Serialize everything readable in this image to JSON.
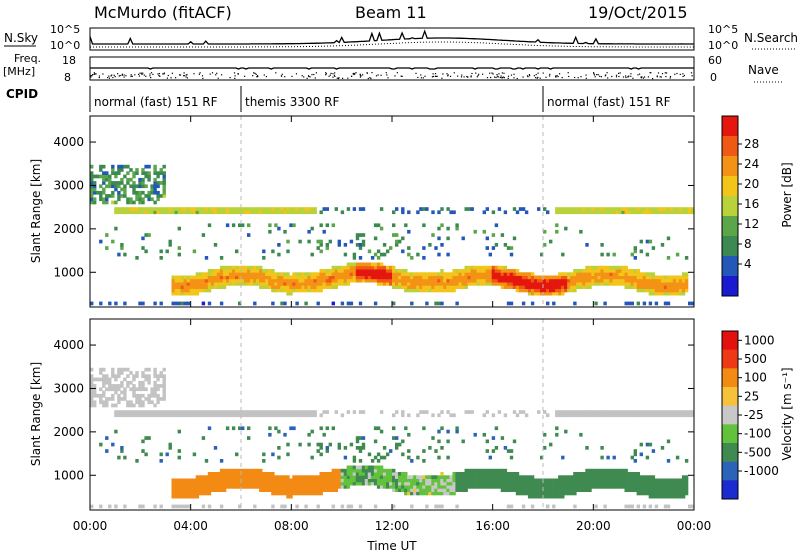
{
  "header": {
    "station": "McMurdo (fitACF)",
    "beam": "Beam 11",
    "date": "19/Oct/2015"
  },
  "status_panel": {
    "nsky_label": "N.Sky",
    "nsearch_label": "N.Search",
    "noise_left_ticks": [
      "10^5",
      "10^0"
    ],
    "noise_right_ticks": [
      "10^5",
      "10^0"
    ],
    "freq_label": "Freq.",
    "freq_unit": "[MHz]",
    "freq_ticks": [
      "18",
      "8"
    ],
    "nave_label": "Nave",
    "nave_ticks": [
      "60",
      "0"
    ],
    "cpid_label": "CPID",
    "cpid_segments": [
      {
        "label": "normal (fast) 151 RF",
        "start_h": 0,
        "end_h": 6
      },
      {
        "label": "themis 3300 RF",
        "start_h": 6,
        "end_h": 18
      },
      {
        "label": "normal (fast) 151 RF",
        "start_h": 18,
        "end_h": 24
      }
    ]
  },
  "x_axis": {
    "label": "Time UT",
    "ticks": [
      "00:00",
      "04:00",
      "08:00",
      "12:00",
      "16:00",
      "20:00",
      "00:00"
    ]
  },
  "colors": {
    "power": [
      "#1a1ad0",
      "#2358b8",
      "#3c8a52",
      "#5aa648",
      "#b9d23a",
      "#f3c41a",
      "#f39214",
      "#ee5a14",
      "#e4160e"
    ],
    "velocity": [
      "#1a2bd0",
      "#2b63b8",
      "#3f8a50",
      "#62c23c",
      "#c8c8c8",
      "#f5c23a",
      "#f38a14",
      "#ee3a14",
      "#e4100e"
    ],
    "ground_scatter": "#c3c3c3",
    "axis": "#000000"
  },
  "chart_data": [
    {
      "type": "heatmap",
      "name": "power",
      "xlabel": "Time UT",
      "ylabel": "Slant Range [km]",
      "colorbar_label": "Power [dB]",
      "colorbar_ticks": [
        "28",
        "24",
        "20",
        "16",
        "12",
        "8",
        "4"
      ],
      "xlim": [
        0,
        24
      ],
      "ylim": [
        200,
        4600
      ],
      "y_ticks": [
        1000,
        2000,
        3000,
        4000
      ],
      "clim": [
        0,
        30
      ]
    },
    {
      "type": "heatmap",
      "name": "velocity",
      "xlabel": "Time UT",
      "ylabel": "Slant Range [km]",
      "colorbar_label": "Velocity [m s⁻¹]",
      "colorbar_ticks": [
        "1000",
        "500",
        "100",
        "25",
        "-25",
        "-100",
        "-500",
        "-1000"
      ],
      "xlim": [
        0,
        24
      ],
      "ylim": [
        200,
        4600
      ],
      "y_ticks": [
        1000,
        2000,
        3000,
        4000
      ],
      "clim": [
        -1000,
        1000
      ]
    }
  ]
}
